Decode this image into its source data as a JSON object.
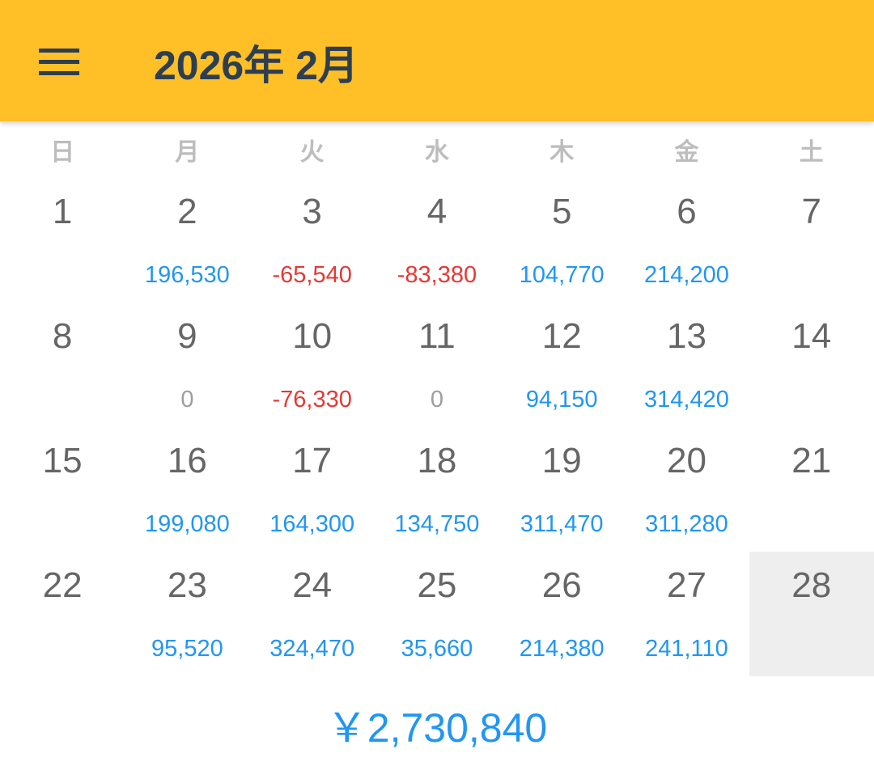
{
  "header": {
    "title": "2026年 2月",
    "menu_icon": "hamburger-menu-icon",
    "color": "#FFBF27"
  },
  "weekdays": [
    "日",
    "月",
    "火",
    "水",
    "木",
    "金",
    "土"
  ],
  "colors": {
    "positive": "#2196F3",
    "negative": "#E53935",
    "zero": "#9e9e9e",
    "selected_bg": "#eeeeee"
  },
  "days": [
    {
      "day": "1",
      "value": ""
    },
    {
      "day": "2",
      "value": "196,530"
    },
    {
      "day": "3",
      "value": "-65,540"
    },
    {
      "day": "4",
      "value": "-83,380"
    },
    {
      "day": "5",
      "value": "104,770"
    },
    {
      "day": "6",
      "value": "214,200"
    },
    {
      "day": "7",
      "value": ""
    },
    {
      "day": "8",
      "value": ""
    },
    {
      "day": "9",
      "value": "0"
    },
    {
      "day": "10",
      "value": "-76,330"
    },
    {
      "day": "11",
      "value": "0"
    },
    {
      "day": "12",
      "value": "94,150"
    },
    {
      "day": "13",
      "value": "314,420"
    },
    {
      "day": "14",
      "value": ""
    },
    {
      "day": "15",
      "value": ""
    },
    {
      "day": "16",
      "value": "199,080"
    },
    {
      "day": "17",
      "value": "164,300"
    },
    {
      "day": "18",
      "value": "134,750"
    },
    {
      "day": "19",
      "value": "311,470"
    },
    {
      "day": "20",
      "value": "311,280"
    },
    {
      "day": "21",
      "value": ""
    },
    {
      "day": "22",
      "value": ""
    },
    {
      "day": "23",
      "value": "95,520"
    },
    {
      "day": "24",
      "value": "324,470"
    },
    {
      "day": "25",
      "value": "35,660"
    },
    {
      "day": "26",
      "value": "214,380"
    },
    {
      "day": "27",
      "value": "241,110"
    },
    {
      "day": "28",
      "value": "",
      "selected": true
    }
  ],
  "total": "￥2,730,840"
}
